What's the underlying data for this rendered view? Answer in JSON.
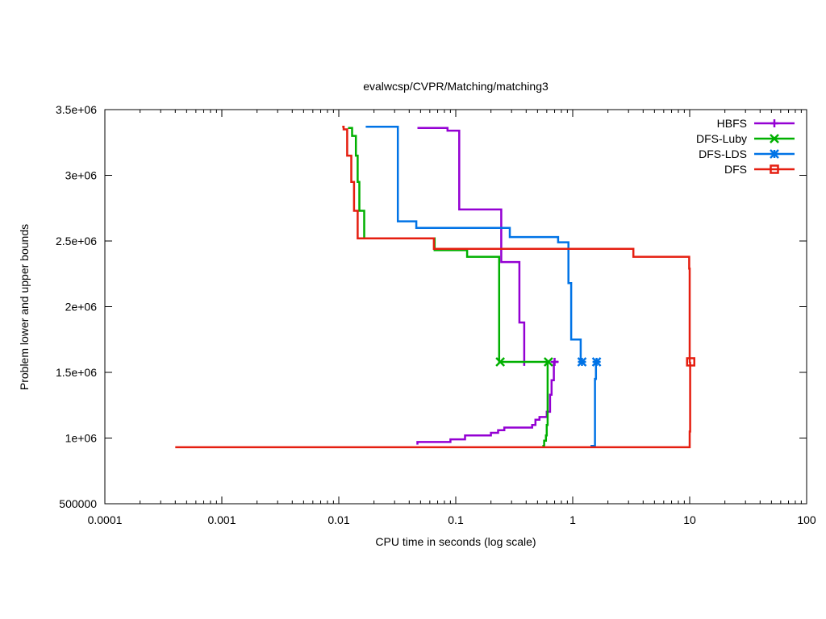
{
  "chart_data": {
    "type": "line",
    "title": "evalwcsp/CVPR/Matching/matching3",
    "xlabel": "CPU time in seconds (log scale)",
    "ylabel": "Problem lower and upper bounds",
    "x_scale": "log",
    "xlim": [
      0.0001,
      100
    ],
    "ylim": [
      500000,
      3500000
    ],
    "x_ticks": [
      {
        "value": 0.0001,
        "label": "0.0001"
      },
      {
        "value": 0.001,
        "label": "0.001"
      },
      {
        "value": 0.01,
        "label": "0.01"
      },
      {
        "value": 0.1,
        "label": "0.1"
      },
      {
        "value": 1,
        "label": "1"
      },
      {
        "value": 10,
        "label": "10"
      },
      {
        "value": 100,
        "label": "100"
      }
    ],
    "y_ticks": [
      {
        "value": 500000,
        "label": "500000"
      },
      {
        "value": 1000000,
        "label": "1e+06"
      },
      {
        "value": 1500000,
        "label": "1.5e+06"
      },
      {
        "value": 2000000,
        "label": "2e+06"
      },
      {
        "value": 2500000,
        "label": "2.5e+06"
      },
      {
        "value": 3000000,
        "label": "3e+06"
      },
      {
        "value": 3500000,
        "label": "3.5e+06"
      }
    ],
    "grid": false,
    "legend_position": "top-right",
    "series": [
      {
        "name": "HBFS",
        "color": "#9400d3",
        "marker": "plus",
        "markers": [
          [
            0.7,
            1580000
          ]
        ],
        "upper": [
          [
            0.047,
            3360000
          ],
          [
            0.085,
            3360000
          ],
          [
            0.085,
            3340000
          ],
          [
            0.107,
            3340000
          ],
          [
            0.107,
            2740000
          ],
          [
            0.245,
            2740000
          ],
          [
            0.245,
            2340000
          ],
          [
            0.35,
            2340000
          ],
          [
            0.35,
            1880000
          ],
          [
            0.385,
            1880000
          ],
          [
            0.385,
            1550000
          ]
        ],
        "lower": [
          [
            0.047,
            950000
          ],
          [
            0.047,
            970000
          ],
          [
            0.09,
            970000
          ],
          [
            0.09,
            990000
          ],
          [
            0.12,
            990000
          ],
          [
            0.12,
            1020000
          ],
          [
            0.2,
            1020000
          ],
          [
            0.2,
            1040000
          ],
          [
            0.23,
            1040000
          ],
          [
            0.23,
            1060000
          ],
          [
            0.26,
            1060000
          ],
          [
            0.26,
            1080000
          ],
          [
            0.45,
            1080000
          ],
          [
            0.45,
            1100000
          ],
          [
            0.48,
            1100000
          ],
          [
            0.48,
            1140000
          ],
          [
            0.52,
            1140000
          ],
          [
            0.52,
            1160000
          ],
          [
            0.6,
            1160000
          ],
          [
            0.6,
            1200000
          ],
          [
            0.64,
            1200000
          ],
          [
            0.64,
            1330000
          ],
          [
            0.66,
            1330000
          ],
          [
            0.66,
            1440000
          ],
          [
            0.69,
            1440000
          ],
          [
            0.69,
            1580000
          ],
          [
            0.75,
            1580000
          ]
        ]
      },
      {
        "name": "DFS-Luby",
        "color": "#00b000",
        "marker": "cross",
        "markers": [
          [
            0.24,
            1580000
          ],
          [
            0.62,
            1580000
          ]
        ],
        "upper": [
          [
            0.012,
            3360000
          ],
          [
            0.013,
            3360000
          ],
          [
            0.013,
            3300000
          ],
          [
            0.014,
            3300000
          ],
          [
            0.014,
            3150000
          ],
          [
            0.0145,
            3150000
          ],
          [
            0.0145,
            2950000
          ],
          [
            0.015,
            2950000
          ],
          [
            0.015,
            2730000
          ],
          [
            0.0165,
            2730000
          ],
          [
            0.0165,
            2520000
          ],
          [
            0.066,
            2520000
          ],
          [
            0.066,
            2430000
          ],
          [
            0.125,
            2430000
          ],
          [
            0.125,
            2380000
          ],
          [
            0.235,
            2380000
          ],
          [
            0.235,
            1580000
          ],
          [
            0.62,
            1580000
          ]
        ],
        "lower": [
          [
            0.55,
            940000
          ],
          [
            0.57,
            940000
          ],
          [
            0.57,
            980000
          ],
          [
            0.59,
            980000
          ],
          [
            0.59,
            1020000
          ],
          [
            0.6,
            1020000
          ],
          [
            0.6,
            1100000
          ],
          [
            0.61,
            1100000
          ],
          [
            0.61,
            1580000
          ],
          [
            0.62,
            1580000
          ]
        ]
      },
      {
        "name": "DFS-LDS",
        "color": "#0073e6",
        "marker": "star",
        "markers": [
          [
            1.2,
            1580000
          ],
          [
            1.6,
            1580000
          ]
        ],
        "upper": [
          [
            0.017,
            3370000
          ],
          [
            0.032,
            3370000
          ],
          [
            0.032,
            2650000
          ],
          [
            0.046,
            2650000
          ],
          [
            0.046,
            2600000
          ],
          [
            0.29,
            2600000
          ],
          [
            0.29,
            2530000
          ],
          [
            0.75,
            2530000
          ],
          [
            0.75,
            2490000
          ],
          [
            0.92,
            2490000
          ],
          [
            0.92,
            2180000
          ],
          [
            0.97,
            2180000
          ],
          [
            0.97,
            1750000
          ],
          [
            1.17,
            1750000
          ],
          [
            1.17,
            1580000
          ],
          [
            1.2,
            1580000
          ]
        ],
        "lower": [
          [
            1.42,
            940000
          ],
          [
            1.55,
            940000
          ],
          [
            1.55,
            1450000
          ],
          [
            1.58,
            1450000
          ],
          [
            1.58,
            1580000
          ],
          [
            1.6,
            1580000
          ]
        ]
      },
      {
        "name": "DFS",
        "color": "#e51e10",
        "marker": "square",
        "markers": [
          [
            10.2,
            1580000
          ]
        ],
        "upper": [
          [
            0.0107,
            3370000
          ],
          [
            0.011,
            3370000
          ],
          [
            0.011,
            3350000
          ],
          [
            0.0118,
            3350000
          ],
          [
            0.0118,
            3150000
          ],
          [
            0.0128,
            3150000
          ],
          [
            0.0128,
            2950000
          ],
          [
            0.0135,
            2950000
          ],
          [
            0.0135,
            2730000
          ],
          [
            0.0145,
            2730000
          ],
          [
            0.0145,
            2520000
          ],
          [
            0.065,
            2520000
          ],
          [
            0.065,
            2440000
          ],
          [
            3.3,
            2440000
          ],
          [
            3.3,
            2380000
          ],
          [
            9.9,
            2380000
          ],
          [
            9.9,
            2290000
          ],
          [
            10.0,
            2290000
          ],
          [
            10.0,
            1580000
          ],
          [
            10.2,
            1580000
          ]
        ],
        "lower": [
          [
            0.0004,
            930000
          ],
          [
            10.0,
            930000
          ],
          [
            10.0,
            1050000
          ],
          [
            10.1,
            1050000
          ],
          [
            10.1,
            1580000
          ],
          [
            10.2,
            1580000
          ]
        ]
      }
    ]
  }
}
